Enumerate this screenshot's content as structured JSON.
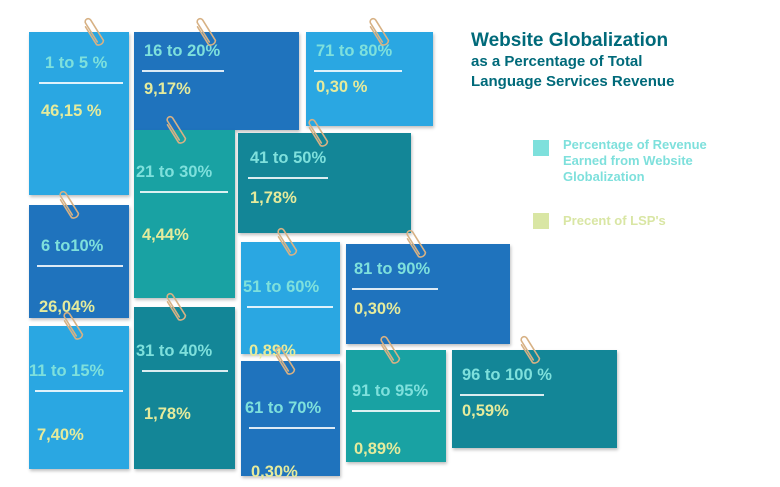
{
  "title": {
    "line1": "Website Globalization",
    "line2": "as a Percentage of Total",
    "line3": "Language Services Revenue"
  },
  "legend": [
    {
      "lines": [
        "Percentage of Revenue",
        "Earned from Website",
        "Globalization"
      ],
      "color": "#7ee0dc"
    },
    {
      "lines": [
        "Precent of LSP's"
      ],
      "color": "#d9e6a4"
    }
  ],
  "colors": {
    "title": "#006a7a",
    "range_text": "#7ee0dc",
    "value_text": "#e5eb9c",
    "paperclip": "#d7b184"
  },
  "chart_data": {
    "type": "table",
    "title": "Website Globalization as a Percentage of Total Language Services Revenue",
    "series": [
      {
        "name": "Percentage of Revenue Earned from Website Globalization",
        "role": "category"
      },
      {
        "name": "Precent of LSP's",
        "role": "value"
      }
    ],
    "categories": [
      "1 to 5 %",
      "16 to 20%",
      "71 to 80%",
      "21 to 30%",
      "41 to 50%",
      "6 to10%",
      "51 to 60%",
      "81 to 90%",
      "11 to 15%",
      "31 to 40%",
      "61 to 70%",
      "91 to 95%",
      "96 to 100 %"
    ],
    "labels": [
      "46,15 %",
      "9,17%",
      "0,30 %",
      "4,44%",
      "1,78%",
      "26,04%",
      "0,89%",
      "0,30%",
      "7,40%",
      "1,78%",
      "0,30%",
      "0,89%",
      "0,59%"
    ],
    "values": [
      46.15,
      9.17,
      0.3,
      4.44,
      1.78,
      26.04,
      0.89,
      0.3,
      7.4,
      1.78,
      0.3,
      0.89,
      0.59
    ]
  }
}
